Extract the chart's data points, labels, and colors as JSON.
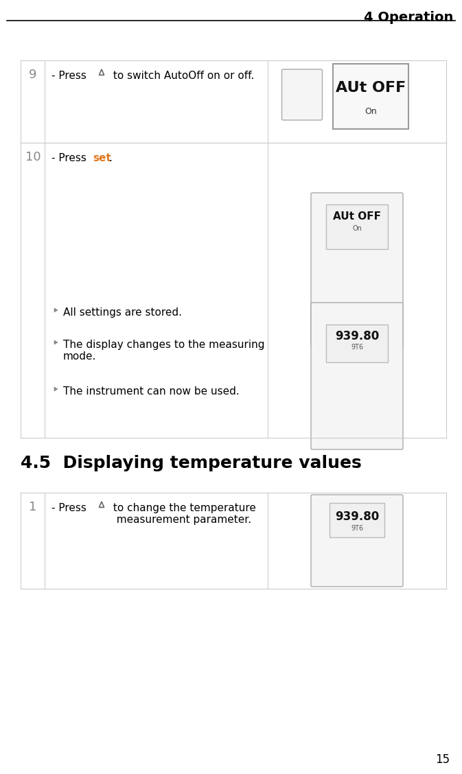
{
  "page_title": "4 Operation",
  "page_number": "15",
  "bg_color": "#ffffff",
  "title_color": "#000000",
  "header_line_color": "#000000",
  "section_title": "4.5  Displaying temperature values",
  "section_title_fontsize": 18,
  "rows": [
    {
      "number": "9",
      "number_color": "#888888",
      "text_parts": [
        {
          "text": "- Press ",
          "bold": false,
          "color": "#000000"
        },
        {
          "text": "△",
          "bold": false,
          "color": "#000000",
          "is_symbol": true
        },
        {
          "text": " to switch AutoOff on or off.",
          "bold": false,
          "color": "#000000"
        }
      ],
      "bullets": []
    },
    {
      "number": "10",
      "number_color": "#888888",
      "text_parts": [
        {
          "text": "- Press ",
          "bold": false,
          "color": "#000000"
        },
        {
          "text": "set",
          "bold": true,
          "color": "#e07820"
        },
        {
          "text": ".",
          "bold": false,
          "color": "#000000"
        }
      ],
      "bullets": [
        {
          "text": "All settings are stored.",
          "color": "#000000"
        },
        {
          "text": "The display changes to the measuring\nmode.",
          "color": "#000000"
        },
        {
          "text": "The instrument can now be used.",
          "color": "#000000"
        }
      ]
    }
  ],
  "section_row": {
    "number": "1",
    "number_color": "#888888",
    "text_parts": [
      {
        "text": "- Press ",
        "bold": false,
        "color": "#000000"
      },
      {
        "text": "△",
        "bold": false,
        "color": "#000000",
        "is_symbol": true
      },
      {
        "text": " to change the temperature\nmeasurement parameter.",
        "bold": false,
        "color": "#000000"
      }
    ],
    "bullets": []
  },
  "text_fontsize": 11,
  "bullet_fontsize": 11,
  "number_fontsize": 13
}
